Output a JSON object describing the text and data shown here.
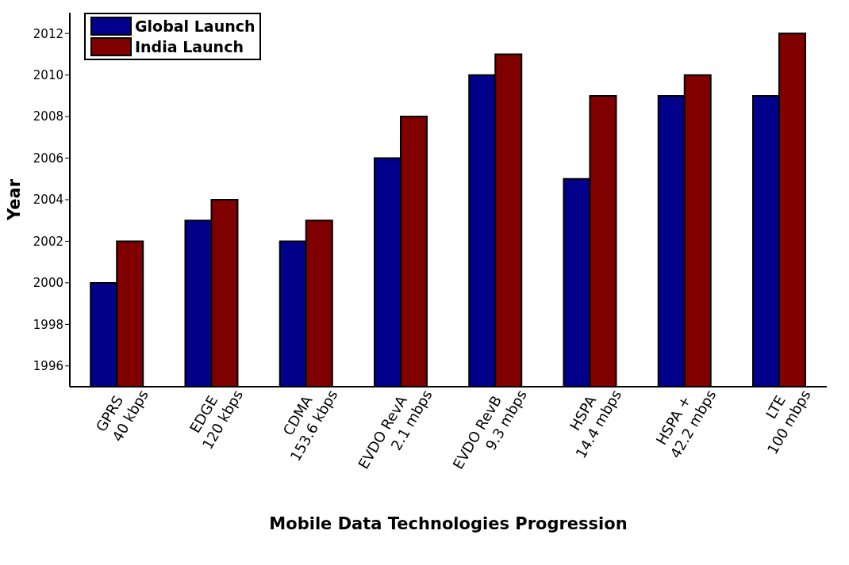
{
  "chart_data": {
    "type": "bar",
    "xlabel": "Mobile Data Technologies Progression",
    "ylabel": "Year",
    "categories": [
      "GPRS\n40 kbps",
      "EDGE\n120 kbps",
      "CDMA\n153.6 kbps",
      "EVDO RevA\n2.1 mbps",
      "EVDO RevB\n9.3 mbps",
      "HSPA\n14.4 mbps",
      "HSPA +\n42.2 mbps",
      "LTE\n100 mbps"
    ],
    "series": [
      {
        "name": "Global Launch",
        "color": "#00008b",
        "values": [
          2000,
          2003,
          2002,
          2006,
          2010,
          2005,
          2009,
          2009
        ]
      },
      {
        "name": "India Launch",
        "color": "#800000",
        "values": [
          2002,
          2004,
          2003,
          2008,
          2011,
          2009,
          2010,
          2012
        ]
      }
    ],
    "ylim": [
      1995,
      2013
    ],
    "yticks": [
      1996,
      1998,
      2000,
      2002,
      2004,
      2006,
      2008,
      2010,
      2012
    ],
    "grid": false,
    "legend": "top left"
  }
}
